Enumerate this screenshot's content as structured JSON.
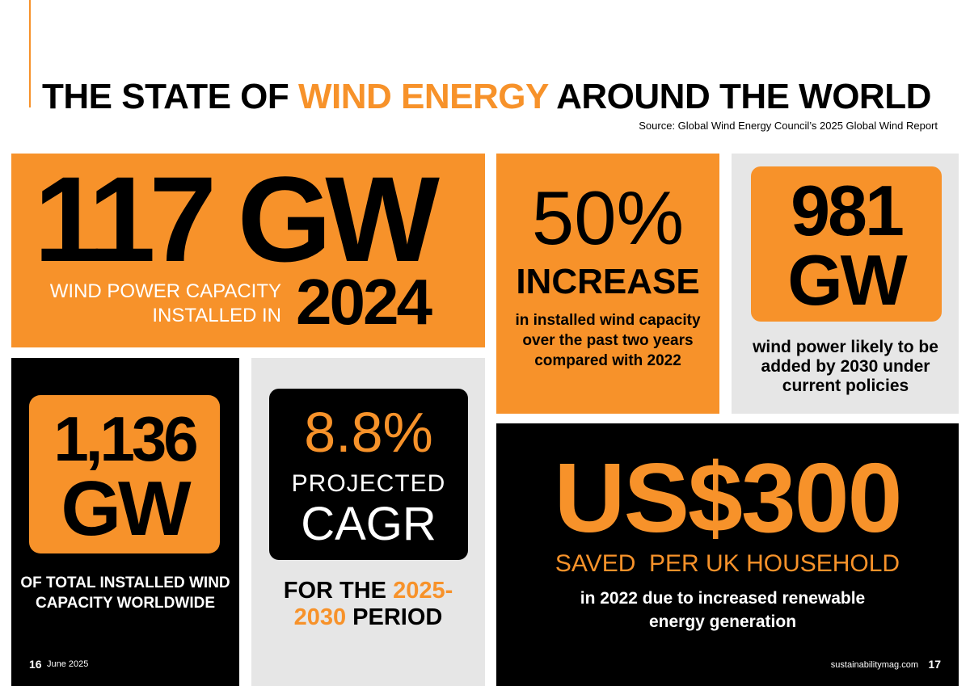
{
  "header": {
    "title_part1": "THE STATE OF ",
    "title_highlight": "WIND ENERGY",
    "title_part2": " AROUND THE WORLD",
    "source": "Source: Global Wind Energy Council’s 2025 Global Wind Report"
  },
  "stat_capacity_2024": {
    "value": "117 GW",
    "label_line1": "WIND POWER CAPACITY",
    "label_line2": "INSTALLED IN",
    "year": "2024"
  },
  "stat_increase": {
    "value": "50%",
    "headline": "INCREASE",
    "description": "in installed wind capacity over the past two years compared with 2022"
  },
  "stat_2030": {
    "value_line1": "981",
    "value_line2": "GW",
    "description": "wind power likely to be added by 2030 under current policies"
  },
  "stat_total": {
    "value_line1": "1,136",
    "value_line2": "GW",
    "description": "OF TOTAL INSTALLED WIND CAPACITY WORLDWIDE"
  },
  "stat_cagr": {
    "value": "8.8%",
    "label_line1": "PROJECTED",
    "label_line2": "CAGR",
    "period_part1": "FOR THE ",
    "period_highlight1": "2025-",
    "period_highlight2": "2030",
    "period_part2": " PERIOD"
  },
  "stat_savings": {
    "value": "US$300",
    "headline": "SAVED  PER UK HOUSEHOLD",
    "description": "in 2022 due to increased renewable energy generation"
  },
  "footer": {
    "left_page": "16",
    "date": "June 2025",
    "site": "sustainabilitymag.com",
    "right_page": "17"
  },
  "colors": {
    "accent": "#f7922a",
    "dark": "#000000",
    "light_panel": "#e6e6e6"
  }
}
